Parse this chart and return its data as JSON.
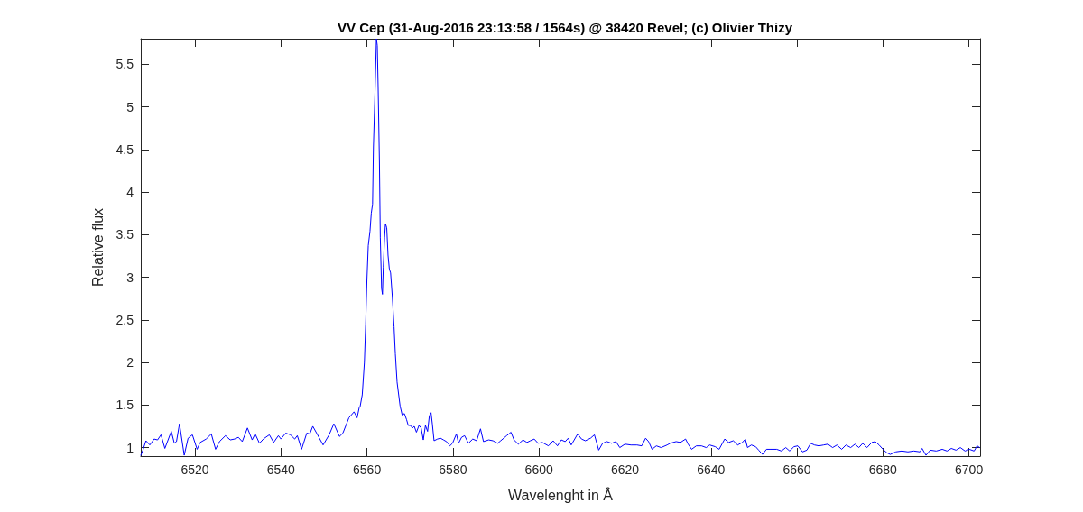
{
  "chart_data": {
    "type": "line",
    "title": "VV Cep (31-Aug-2016 23:13:58 / 1564s) @ 38420 Revel; (c) Olivier Thizy",
    "xlabel": "Wavelenght in Â",
    "ylabel": "Relative flux",
    "color": "#0000ff",
    "marker": "none",
    "line_style": "solid",
    "xlim": [
      6507.4,
      6702.6
    ],
    "xticks": [
      6520,
      6540,
      6560,
      6580,
      6600,
      6620,
      6640,
      6660,
      6680,
      6700
    ],
    "ylim": [
      0.9,
      5.8
    ],
    "yticks": [
      1,
      1.5,
      2,
      2.5,
      3,
      3.5,
      4,
      4.5,
      5,
      5.5
    ],
    "x": [
      6507.4,
      6507.9,
      6508.6,
      6509.5,
      6510.5,
      6511.3,
      6512.1,
      6513.0,
      6514.5,
      6515.2,
      6515.7,
      6516.4,
      6517.5,
      6518.4,
      6519.4,
      6520.5,
      6521.2,
      6522.6,
      6523.8,
      6524.8,
      6525.7,
      6527.1,
      6528.2,
      6529.2,
      6530.1,
      6531.0,
      6532.2,
      6533.3,
      6534.0,
      6535.0,
      6535.9,
      6537.3,
      6538.3,
      6539.4,
      6540.0,
      6541.1,
      6542.2,
      6543.2,
      6543.8,
      6544.8,
      6546.0,
      6546.7,
      6547.4,
      6548.4,
      6549.8,
      6551.2,
      6552.3,
      6553.6,
      6554.4,
      6555.8,
      6557.0,
      6557.7,
      6558.2,
      6558.4,
      6558.9,
      6559.4,
      6559.7,
      6560.0,
      6560.3,
      6560.7,
      6561.0,
      6561.3,
      6561.5,
      6561.9,
      6562.2,
      6562.4,
      6562.6,
      6562.9,
      6563.1,
      6563.4,
      6563.6,
      6563.8,
      6564.1,
      6564.3,
      6564.6,
      6564.9,
      6565.2,
      6565.5,
      6565.9,
      6566.3,
      6566.6,
      6567.0,
      6567.7,
      6568.2,
      6568.7,
      6569.2,
      6569.6,
      6570.1,
      6570.6,
      6571.0,
      6571.5,
      6572.1,
      6572.6,
      6573.1,
      6573.6,
      6574.1,
      6574.5,
      6574.9,
      6575.2,
      6575.6,
      6576.4,
      6577.1,
      6577.8,
      6578.5,
      6579.3,
      6579.9,
      6580.8,
      6581.3,
      6582.0,
      6582.7,
      6583.6,
      6584.6,
      6585.5,
      6586.4,
      6587.1,
      6588.3,
      6589.3,
      6590.4,
      6591.1,
      6592.5,
      6593.5,
      6594.2,
      6595.2,
      6596.3,
      6597.2,
      6598.0,
      6598.9,
      6599.8,
      6600.8,
      6602.2,
      6603.3,
      6604.3,
      6605.2,
      6606.1,
      6606.8,
      6607.5,
      6608.2,
      6609.0,
      6609.9,
      6610.8,
      6612.0,
      6612.9,
      6613.9,
      6614.8,
      6615.8,
      6616.9,
      6617.9,
      6618.8,
      6620.0,
      6621.4,
      6622.8,
      6623.9,
      6624.8,
      6625.5,
      6626.3,
      6627.3,
      6628.4,
      6629.8,
      6630.5,
      6631.9,
      6632.9,
      6634.1,
      6634.7,
      6635.5,
      6636.6,
      6637.8,
      6638.9,
      6639.7,
      6641.0,
      6641.9,
      6643.2,
      6644.1,
      6645.2,
      6646.2,
      6647.3,
      6648.0,
      6648.5,
      6649.4,
      6650.4,
      6651.1,
      6652.0,
      6652.9,
      6653.9,
      6655.3,
      6656.4,
      6657.4,
      6658.3,
      6659.3,
      6660.2,
      6661.3,
      6662.3,
      6663.2,
      6664.1,
      6665.1,
      6666.2,
      6667.2,
      6668.3,
      6669.3,
      6670.4,
      6671.4,
      6672.5,
      6673.5,
      6674.4,
      6675.3,
      6676.3,
      6677.4,
      6678.2,
      6679.1,
      6680.0,
      6680.9,
      6681.7,
      6683.0,
      6684.4,
      6685.8,
      6687.2,
      6688.6,
      6689.1,
      6690.0,
      6691.0,
      6692.4,
      6693.8,
      6694.9,
      6695.9,
      6697.0,
      6698.0,
      6699.1,
      6700.1,
      6701.2,
      6701.9,
      6702.5
    ],
    "values": [
      0.91,
      0.97,
      1.08,
      1.03,
      1.1,
      1.09,
      1.15,
      0.99,
      1.19,
      1.05,
      1.07,
      1.28,
      0.91,
      1.11,
      1.15,
      0.98,
      1.06,
      1.1,
      1.16,
      0.98,
      1.07,
      1.14,
      1.09,
      1.1,
      1.12,
      1.07,
      1.23,
      1.09,
      1.16,
      1.05,
      1.1,
      1.15,
      1.06,
      1.14,
      1.1,
      1.17,
      1.15,
      1.1,
      1.14,
      0.98,
      1.17,
      1.16,
      1.25,
      1.16,
      1.03,
      1.15,
      1.28,
      1.13,
      1.17,
      1.35,
      1.42,
      1.35,
      1.47,
      1.48,
      1.62,
      2.0,
      2.45,
      2.98,
      3.37,
      3.54,
      3.75,
      3.86,
      4.53,
      5.23,
      5.8,
      5.72,
      5.23,
      4.35,
      3.47,
      2.87,
      2.8,
      3.12,
      3.47,
      3.63,
      3.58,
      3.26,
      3.1,
      3.05,
      2.77,
      2.42,
      2.1,
      1.77,
      1.49,
      1.38,
      1.4,
      1.33,
      1.26,
      1.26,
      1.23,
      1.25,
      1.18,
      1.26,
      1.23,
      1.09,
      1.26,
      1.19,
      1.37,
      1.41,
      1.28,
      1.08,
      1.1,
      1.11,
      1.09,
      1.07,
      1.02,
      1.05,
      1.16,
      1.05,
      1.12,
      1.14,
      1.05,
      1.1,
      1.08,
      1.22,
      1.07,
      1.09,
      1.08,
      1.05,
      1.08,
      1.14,
      1.18,
      1.09,
      1.04,
      1.09,
      1.06,
      1.08,
      1.1,
      1.05,
      1.06,
      1.02,
      1.08,
      1.02,
      1.09,
      1.07,
      1.11,
      1.03,
      1.09,
      1.16,
      1.1,
      1.08,
      1.11,
      1.15,
      0.97,
      1.05,
      1.07,
      1.05,
      1.07,
      1.0,
      1.04,
      1.03,
      1.03,
      1.02,
      1.11,
      1.07,
      0.98,
      1.02,
      1.0,
      1.03,
      1.05,
      1.07,
      1.06,
      1.1,
      1.04,
      0.98,
      1.02,
      1.02,
      1.0,
      1.03,
      1.01,
      0.98,
      1.1,
      1.06,
      1.08,
      1.03,
      1.06,
      1.1,
      1.0,
      1.03,
      1.01,
      0.97,
      0.92,
      0.98,
      0.98,
      0.98,
      0.96,
      1.0,
      0.96,
      1.01,
      1.02,
      0.95,
      0.97,
      1.05,
      1.03,
      1.02,
      1.03,
      1.04,
      1.0,
      1.03,
      0.98,
      1.03,
      1.0,
      1.04,
      1.0,
      1.05,
      1.0,
      1.06,
      1.07,
      1.03,
      0.98,
      0.94,
      0.92,
      0.95,
      0.96,
      0.95,
      0.96,
      0.95,
      0.99,
      0.91,
      0.97,
      0.96,
      0.98,
      0.96,
      0.99,
      0.97,
      1.0,
      0.96,
      0.98,
      0.96,
      1.02,
      1.0
    ]
  }
}
